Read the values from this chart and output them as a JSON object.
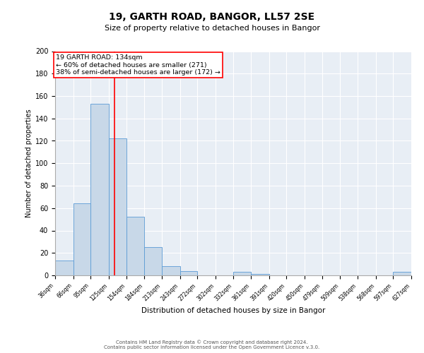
{
  "title": "19, GARTH ROAD, BANGOR, LL57 2SE",
  "subtitle": "Size of property relative to detached houses in Bangor",
  "xlabel": "Distribution of detached houses by size in Bangor",
  "ylabel": "Number of detached properties",
  "bar_color": "#c8d8e8",
  "bar_edge_color": "#5b9bd5",
  "bin_edges": [
    36,
    66,
    95,
    125,
    154,
    184,
    213,
    243,
    272,
    302,
    332,
    361,
    391,
    420,
    450,
    479,
    509,
    538,
    568,
    597,
    627
  ],
  "bar_heights": [
    13,
    64,
    153,
    122,
    52,
    25,
    8,
    4,
    0,
    0,
    3,
    1,
    0,
    0,
    0,
    0,
    0,
    0,
    0,
    3
  ],
  "red_line_x": 134,
  "ylim": [
    0,
    200
  ],
  "annotation_title": "19 GARTH ROAD: 134sqm",
  "annotation_line1": "← 60% of detached houses are smaller (271)",
  "annotation_line2": "38% of semi-detached houses are larger (172) →",
  "footer_line1": "Contains HM Land Registry data © Crown copyright and database right 2024.",
  "footer_line2": "Contains public sector information licensed under the Open Government Licence v.3.0.",
  "background_color": "#e8eef5",
  "grid_color": "#ffffff",
  "title_fontsize": 10,
  "subtitle_fontsize": 8,
  "xlabel_fontsize": 7.5,
  "ylabel_fontsize": 7,
  "xtick_fontsize": 5.5,
  "ytick_fontsize": 7,
  "annotation_fontsize": 6.8,
  "footer_fontsize": 5
}
